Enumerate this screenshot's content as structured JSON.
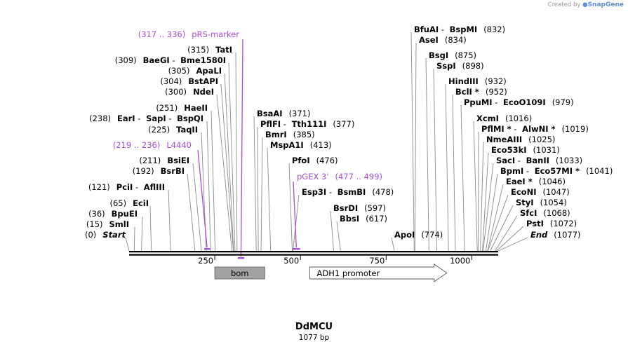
{
  "credit": {
    "text": "Created by",
    "brand": "SnapGene"
  },
  "map": {
    "title": "DdMCU",
    "length": "1077 bp",
    "total_bp": 1077
  },
  "ticks": [
    250,
    500,
    750,
    1000
  ],
  "colors": {
    "primer": "#a64dd9",
    "feature": "#a3a3a3",
    "line": "#000000"
  },
  "sites": [
    {
      "parts": [
        "(0)",
        "Start"
      ],
      "pos": 0
    },
    {
      "parts": [
        "(15)",
        "SmlI"
      ],
      "pos": 15
    },
    {
      "parts": [
        "(36)",
        "BpuEI"
      ],
      "pos": 36
    },
    {
      "parts": [
        "(65)",
        "EciI"
      ],
      "pos": 65
    },
    {
      "parts": [
        "(121)",
        "PciI",
        " - ",
        "AflIII"
      ],
      "pos": 121
    },
    {
      "parts": [
        "(192)",
        "BsrBI"
      ],
      "pos": 192
    },
    {
      "parts": [
        "(211)",
        "BsiEI"
      ],
      "pos": 211
    },
    {
      "parts": [
        "(225)",
        "TaqII"
      ],
      "pos": 225
    },
    {
      "parts": [
        "(238)",
        "EarI",
        " - ",
        "SapI",
        " - ",
        "BspQI"
      ],
      "pos": 238
    },
    {
      "parts": [
        "(251)",
        "HaeII"
      ],
      "pos": 251
    },
    {
      "parts": [
        "(300)",
        "NdeI"
      ],
      "pos": 300
    },
    {
      "parts": [
        "(304)",
        "BstAPI"
      ],
      "pos": 304
    },
    {
      "parts": [
        "(305)",
        "ApaLI"
      ],
      "pos": 305
    },
    {
      "parts": [
        "(309)",
        "BaeGI",
        " - ",
        "Bme1580I"
      ],
      "pos": 309
    },
    {
      "parts": [
        "(315)",
        "TatI"
      ],
      "pos": 315
    },
    {
      "parts": [
        "BsaAI",
        "(371)"
      ],
      "pos": 371
    },
    {
      "parts": [
        "PflFI",
        " - ",
        "Tth111I",
        "(377)"
      ],
      "pos": 377
    },
    {
      "parts": [
        "BmrI",
        "(385)"
      ],
      "pos": 385
    },
    {
      "parts": [
        "MspA1I",
        "(413)"
      ],
      "pos": 413
    },
    {
      "parts": [
        "PfoI",
        "(476)"
      ],
      "pos": 476
    },
    {
      "parts": [
        "Esp3I",
        " - ",
        "BsmBI",
        "(478)"
      ],
      "pos": 478
    },
    {
      "parts": [
        "BsrDI",
        "(597)"
      ],
      "pos": 597
    },
    {
      "parts": [
        "BbsI",
        "(617)"
      ],
      "pos": 617
    },
    {
      "parts": [
        "ApoI",
        "(774)"
      ],
      "pos": 774
    },
    {
      "parts": [
        "BfuAI",
        " - ",
        "BspMI",
        "(832)"
      ],
      "pos": 832
    },
    {
      "parts": [
        "AseI",
        "(834)"
      ],
      "pos": 834
    },
    {
      "parts": [
        "BsgI",
        "(875)"
      ],
      "pos": 875
    },
    {
      "parts": [
        "SspI",
        "(898)"
      ],
      "pos": 898
    },
    {
      "parts": [
        "HindIII",
        "(932)"
      ],
      "pos": 932
    },
    {
      "parts": [
        "BclI *",
        "(952)"
      ],
      "pos": 952
    },
    {
      "parts": [
        "PpuMI",
        " - ",
        "EcoO109I",
        "(979)"
      ],
      "pos": 979
    },
    {
      "parts": [
        "XcmI",
        "(1016)"
      ],
      "pos": 1016
    },
    {
      "parts": [
        "PflMI *",
        " - ",
        "AlwNI *",
        "(1019)"
      ],
      "pos": 1019
    },
    {
      "parts": [
        "NmeAIII",
        "(1025)"
      ],
      "pos": 1025
    },
    {
      "parts": [
        "Eco53kI",
        "(1031)"
      ],
      "pos": 1031
    },
    {
      "parts": [
        "SacI",
        " - ",
        "BanII",
        "(1033)"
      ],
      "pos": 1033
    },
    {
      "parts": [
        "BpmI",
        " - ",
        "Eco57MI *",
        "(1041)"
      ],
      "pos": 1041
    },
    {
      "parts": [
        "EaeI *",
        "(1046)"
      ],
      "pos": 1046
    },
    {
      "parts": [
        "EcoNI",
        "(1047)"
      ],
      "pos": 1047
    },
    {
      "parts": [
        "StyI",
        "(1054)"
      ],
      "pos": 1054
    },
    {
      "parts": [
        "SfcI",
        "(1068)"
      ],
      "pos": 1068
    },
    {
      "parts": [
        "PstI",
        "(1072)"
      ],
      "pos": 1072
    },
    {
      "parts": [
        "End",
        "(1077)"
      ],
      "pos": 1077
    }
  ],
  "primers": [
    {
      "parts": [
        "(219 .. 236)",
        "L4440"
      ],
      "start": 219,
      "end": 236
    },
    {
      "parts": [
        "(317 .. 336)",
        "pRS-marker"
      ],
      "start": 317,
      "end": 336
    },
    {
      "parts": [
        "pGEX 3'",
        "(477 .. 499)"
      ],
      "start": 477,
      "end": 499
    }
  ],
  "features": [
    {
      "label": "bom",
      "start": 250,
      "end": 396,
      "type": "box"
    },
    {
      "label": "ADH1 promoter",
      "start": 527,
      "end": 927,
      "type": "arrow"
    }
  ]
}
